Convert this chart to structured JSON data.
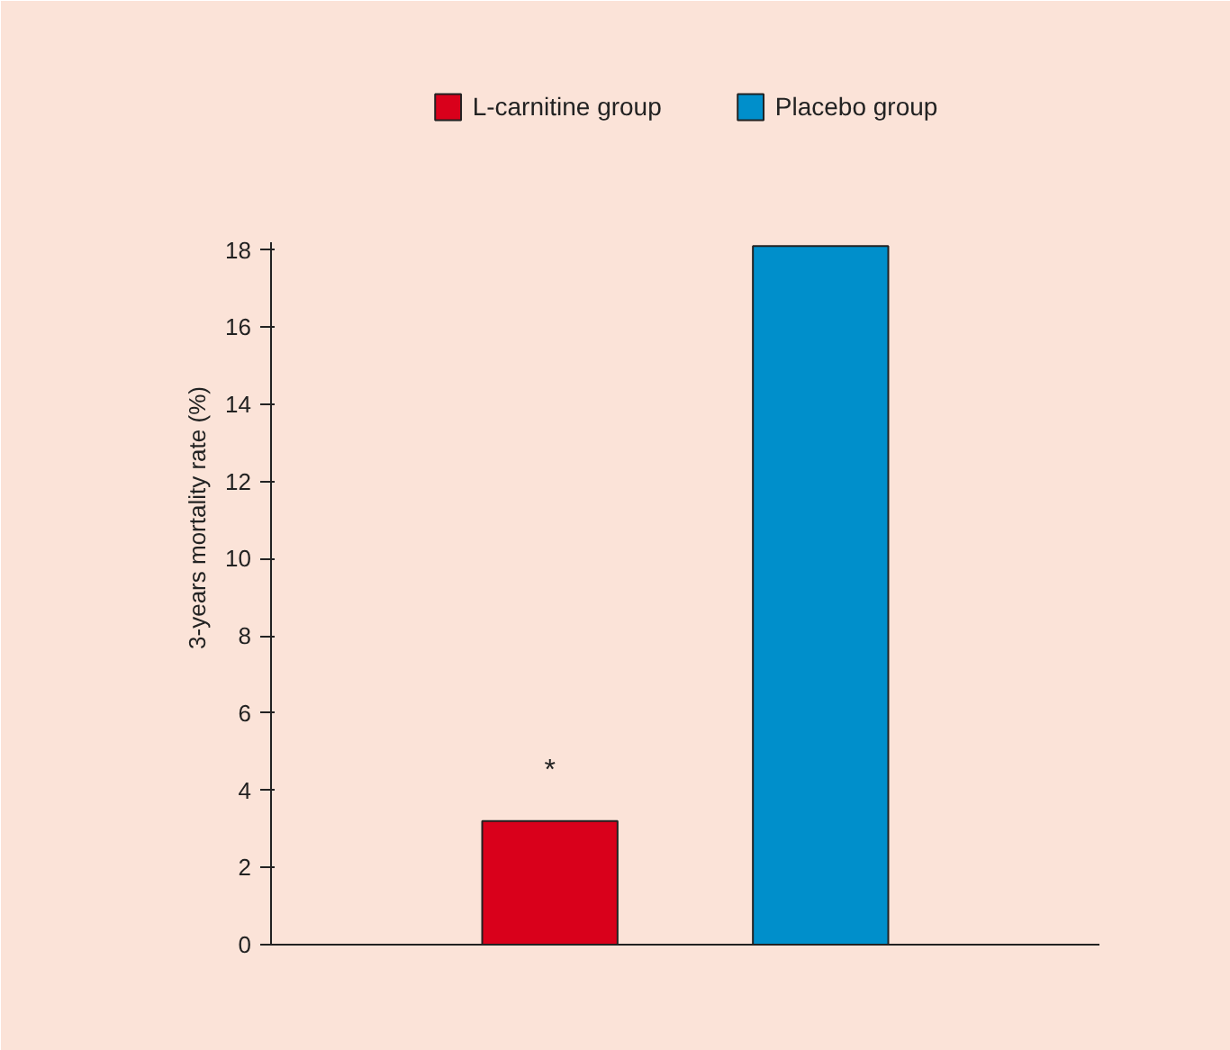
{
  "chart_data": {
    "type": "bar",
    "ylabel": "3-years mortality rate (%)",
    "categories": [
      null
    ],
    "series": [
      {
        "name": "L-carnitine group",
        "color": "#d9001b",
        "values": [
          3.2
        ]
      },
      {
        "name": "Placebo group",
        "color": "#008fcb",
        "values": [
          18.1
        ]
      }
    ],
    "ylim": [
      0,
      18.2
    ],
    "yticks": [
      0,
      2,
      4,
      6,
      8,
      10,
      12,
      14,
      16,
      18
    ],
    "grid": false,
    "legend": "top",
    "tick_labels": "y",
    "annotations": [
      "*"
    ]
  }
}
